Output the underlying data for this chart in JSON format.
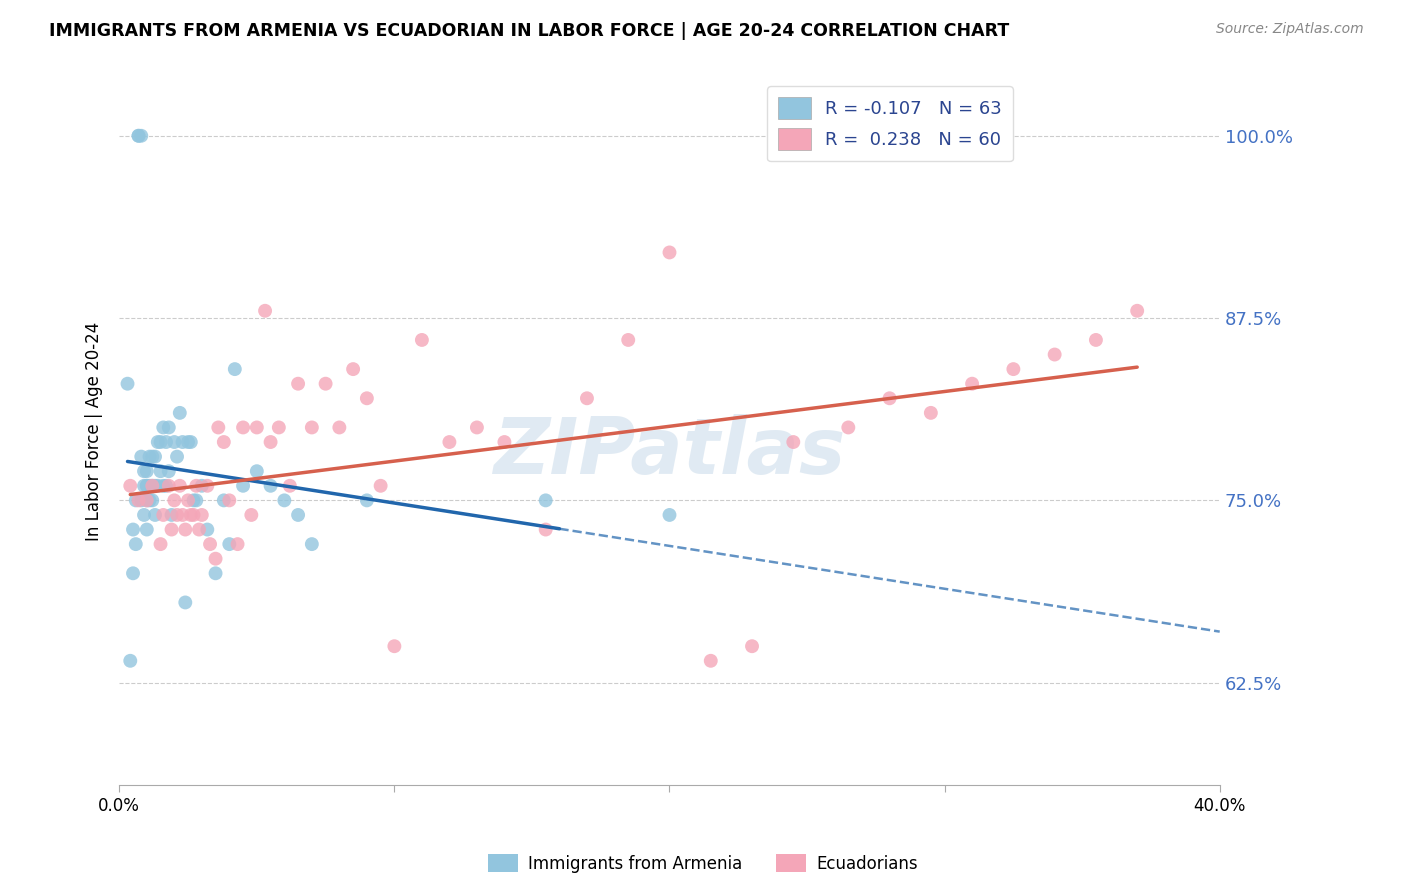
{
  "title": "IMMIGRANTS FROM ARMENIA VS ECUADORIAN IN LABOR FORCE | AGE 20-24 CORRELATION CHART",
  "source": "Source: ZipAtlas.com",
  "ylabel": "In Labor Force | Age 20-24",
  "ytick_labels": [
    "62.5%",
    "75.0%",
    "87.5%",
    "100.0%"
  ],
  "ytick_values": [
    0.625,
    0.75,
    0.875,
    1.0
  ],
  "xlim": [
    0.0,
    0.4
  ],
  "ylim": [
    0.555,
    1.04
  ],
  "watermark": "ZIPatlas",
  "legend_r1": "R = -0.107",
  "legend_n1": "N = 63",
  "legend_r2": "R =  0.238",
  "legend_n2": "N = 60",
  "legend_label1": "Immigrants from Armenia",
  "legend_label2": "Ecuadorians",
  "color_blue": "#92c5de",
  "color_pink": "#f4a6b8",
  "color_blue_line": "#2166ac",
  "color_pink_line": "#d6604d",
  "armenia_x": [
    0.003,
    0.004,
    0.005,
    0.005,
    0.006,
    0.006,
    0.007,
    0.007,
    0.008,
    0.008,
    0.008,
    0.009,
    0.009,
    0.009,
    0.01,
    0.01,
    0.01,
    0.01,
    0.01,
    0.011,
    0.011,
    0.011,
    0.012,
    0.012,
    0.012,
    0.013,
    0.013,
    0.013,
    0.014,
    0.014,
    0.015,
    0.015,
    0.016,
    0.016,
    0.017,
    0.017,
    0.018,
    0.018,
    0.019,
    0.02,
    0.021,
    0.022,
    0.023,
    0.024,
    0.025,
    0.026,
    0.027,
    0.028,
    0.03,
    0.032,
    0.035,
    0.038,
    0.04,
    0.042,
    0.045,
    0.05,
    0.055,
    0.06,
    0.065,
    0.07,
    0.09,
    0.155,
    0.2
  ],
  "armenia_y": [
    0.83,
    0.64,
    0.73,
    0.7,
    0.75,
    0.72,
    1.0,
    1.0,
    1.0,
    0.78,
    0.75,
    0.77,
    0.76,
    0.74,
    0.77,
    0.76,
    0.76,
    0.75,
    0.73,
    0.78,
    0.76,
    0.75,
    0.78,
    0.76,
    0.75,
    0.78,
    0.76,
    0.74,
    0.79,
    0.76,
    0.79,
    0.77,
    0.8,
    0.76,
    0.79,
    0.76,
    0.8,
    0.77,
    0.74,
    0.79,
    0.78,
    0.81,
    0.79,
    0.68,
    0.79,
    0.79,
    0.75,
    0.75,
    0.76,
    0.73,
    0.7,
    0.75,
    0.72,
    0.84,
    0.76,
    0.77,
    0.76,
    0.75,
    0.74,
    0.72,
    0.75,
    0.75,
    0.74
  ],
  "ecuador_x": [
    0.004,
    0.007,
    0.01,
    0.012,
    0.015,
    0.016,
    0.018,
    0.019,
    0.02,
    0.021,
    0.022,
    0.023,
    0.024,
    0.025,
    0.026,
    0.027,
    0.028,
    0.029,
    0.03,
    0.032,
    0.033,
    0.035,
    0.036,
    0.038,
    0.04,
    0.043,
    0.045,
    0.048,
    0.05,
    0.053,
    0.055,
    0.058,
    0.062,
    0.065,
    0.07,
    0.075,
    0.08,
    0.085,
    0.09,
    0.095,
    0.1,
    0.11,
    0.12,
    0.13,
    0.14,
    0.155,
    0.17,
    0.185,
    0.2,
    0.215,
    0.23,
    0.245,
    0.265,
    0.28,
    0.295,
    0.31,
    0.325,
    0.34,
    0.355,
    0.37
  ],
  "ecuador_y": [
    0.76,
    0.75,
    0.75,
    0.76,
    0.72,
    0.74,
    0.76,
    0.73,
    0.75,
    0.74,
    0.76,
    0.74,
    0.73,
    0.75,
    0.74,
    0.74,
    0.76,
    0.73,
    0.74,
    0.76,
    0.72,
    0.71,
    0.8,
    0.79,
    0.75,
    0.72,
    0.8,
    0.74,
    0.8,
    0.88,
    0.79,
    0.8,
    0.76,
    0.83,
    0.8,
    0.83,
    0.8,
    0.84,
    0.82,
    0.76,
    0.65,
    0.86,
    0.79,
    0.8,
    0.79,
    0.73,
    0.82,
    0.86,
    0.92,
    0.64,
    0.65,
    0.79,
    0.8,
    0.82,
    0.81,
    0.83,
    0.84,
    0.85,
    0.86,
    0.88
  ]
}
